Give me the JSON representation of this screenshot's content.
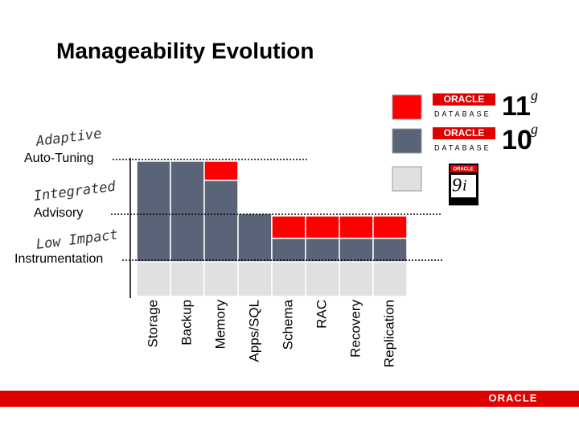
{
  "title": "Manageability Evolution",
  "levels": [
    {
      "title": "Adaptive",
      "label": "Auto-Tuning"
    },
    {
      "title": "Integrated",
      "label": "Advisory"
    },
    {
      "title": "Low Impact",
      "label": "Instrumentation"
    }
  ],
  "categories": [
    "Storage",
    "Backup",
    "Memory",
    "Apps/SQL",
    "Schema",
    "RAC",
    "Recovery",
    "Replication"
  ],
  "legend": [
    {
      "brand": "ORACLE",
      "product": "DATABASE",
      "version": "11",
      "suffix": "g"
    },
    {
      "brand": "ORACLE",
      "product": "DATABASE",
      "version": "10",
      "suffix": "g"
    },
    {
      "brand": "ORACLE",
      "version": "9",
      "suffix": "i"
    }
  ],
  "footer": "ORACLE"
}
